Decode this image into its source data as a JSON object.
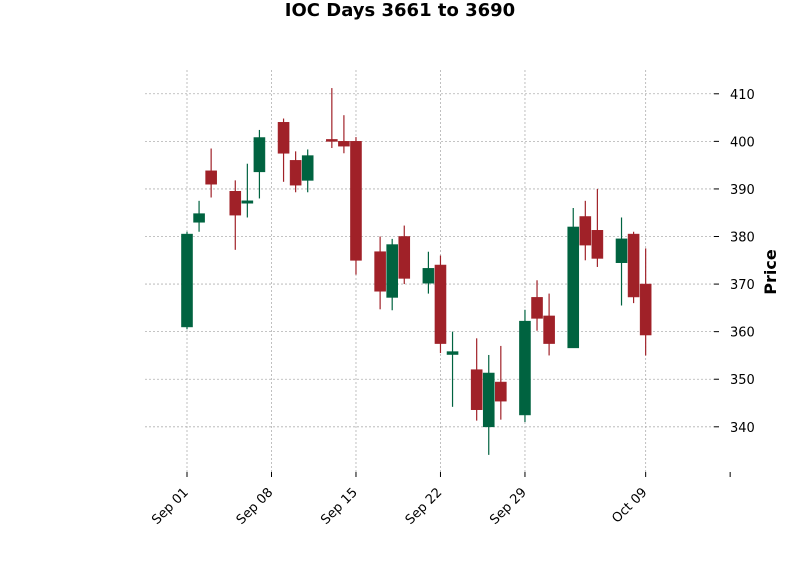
{
  "chart_data": {
    "type": "candlestick",
    "title": "IOC Days 3661 to 3690",
    "xlabel": "",
    "ylabel": "Price",
    "ylim": [
      330.5,
      415
    ],
    "y_ticks": [
      340,
      350,
      360,
      370,
      380,
      390,
      400,
      410
    ],
    "x_ticks": [
      {
        "label": "Sep 01",
        "date": "2023-09-01"
      },
      {
        "label": "Sep 08",
        "date": "2023-09-08"
      },
      {
        "label": "Sep 15",
        "date": "2023-09-15"
      },
      {
        "label": "Sep 22",
        "date": "2023-09-22"
      },
      {
        "label": "Sep 29",
        "date": "2023-09-29"
      },
      {
        "label": "Oct 09",
        "date": "2023-10-09"
      },
      {
        "label": "",
        "date": "2023-10-16"
      }
    ],
    "grid": true,
    "up_color": "#006340",
    "down_color": "#A02128",
    "candles": [
      {
        "date": "2023-09-01",
        "open": 361.0,
        "high": 381.0,
        "low": 360.5,
        "close": 380.5
      },
      {
        "date": "2023-09-02",
        "open": 383.0,
        "high": 387.5,
        "low": 381.0,
        "close": 384.8
      },
      {
        "date": "2023-09-03",
        "open": 393.8,
        "high": 398.5,
        "low": 388.2,
        "close": 391.0
      },
      {
        "date": "2023-09-05",
        "open": 389.5,
        "high": 391.8,
        "low": 377.2,
        "close": 384.5
      },
      {
        "date": "2023-09-06",
        "open": 387.0,
        "high": 395.3,
        "low": 384.0,
        "close": 387.5
      },
      {
        "date": "2023-09-07",
        "open": 393.6,
        "high": 402.4,
        "low": 388.0,
        "close": 400.8
      },
      {
        "date": "2023-09-09",
        "open": 404.0,
        "high": 404.8,
        "low": 391.5,
        "close": 397.5
      },
      {
        "date": "2023-09-10",
        "open": 396.0,
        "high": 397.9,
        "low": 389.3,
        "close": 390.8
      },
      {
        "date": "2023-09-11",
        "open": 391.8,
        "high": 398.3,
        "low": 389.3,
        "close": 397.0
      },
      {
        "date": "2023-09-13",
        "open": 400.4,
        "high": 411.2,
        "low": 398.6,
        "close": 400.0
      },
      {
        "date": "2023-09-14",
        "open": 400.0,
        "high": 405.5,
        "low": 397.5,
        "close": 399.0
      },
      {
        "date": "2023-09-15",
        "open": 400.0,
        "high": 400.9,
        "low": 372.0,
        "close": 375.0
      },
      {
        "date": "2023-09-17",
        "open": 376.8,
        "high": 380.0,
        "low": 364.7,
        "close": 368.5
      },
      {
        "date": "2023-09-18",
        "open": 367.2,
        "high": 379.5,
        "low": 364.5,
        "close": 378.3
      },
      {
        "date": "2023-09-19",
        "open": 380.0,
        "high": 382.3,
        "low": 370.0,
        "close": 371.2
      },
      {
        "date": "2023-09-21",
        "open": 370.2,
        "high": 376.8,
        "low": 368.0,
        "close": 373.3
      },
      {
        "date": "2023-09-22",
        "open": 374.0,
        "high": 376.0,
        "low": 355.5,
        "close": 357.5
      },
      {
        "date": "2023-09-23",
        "open": 355.2,
        "high": 360.0,
        "low": 344.2,
        "close": 355.8
      },
      {
        "date": "2023-09-25",
        "open": 352.0,
        "high": 358.6,
        "low": 341.3,
        "close": 343.6
      },
      {
        "date": "2023-09-26",
        "open": 340.0,
        "high": 355.1,
        "low": 334.1,
        "close": 351.3
      },
      {
        "date": "2023-09-27",
        "open": 349.4,
        "high": 357.0,
        "low": 341.5,
        "close": 345.4
      },
      {
        "date": "2023-09-29",
        "open": 342.5,
        "high": 364.6,
        "low": 341.0,
        "close": 362.2
      },
      {
        "date": "2023-09-30",
        "open": 367.2,
        "high": 370.8,
        "low": 360.2,
        "close": 362.8
      },
      {
        "date": "2023-10-01",
        "open": 363.3,
        "high": 368.0,
        "low": 355.0,
        "close": 357.5
      },
      {
        "date": "2023-10-03",
        "open": 356.6,
        "high": 386.0,
        "low": 356.6,
        "close": 382.0
      },
      {
        "date": "2023-10-04",
        "open": 384.2,
        "high": 387.5,
        "low": 375.0,
        "close": 378.2
      },
      {
        "date": "2023-10-05",
        "open": 381.3,
        "high": 390.0,
        "low": 373.6,
        "close": 375.4
      },
      {
        "date": "2023-10-07",
        "open": 374.5,
        "high": 384.0,
        "low": 365.5,
        "close": 379.5
      },
      {
        "date": "2023-10-08",
        "open": 380.5,
        "high": 381.0,
        "low": 366.0,
        "close": 367.3
      },
      {
        "date": "2023-10-09",
        "open": 370.0,
        "high": 377.5,
        "low": 355.0,
        "close": 359.3
      }
    ]
  }
}
